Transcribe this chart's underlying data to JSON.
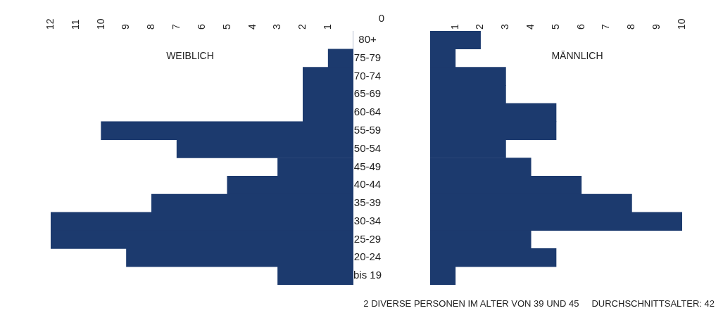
{
  "chart_data": [
    {
      "type": "bar",
      "orientation": "horizontal",
      "title": "WEIBLICH",
      "categories": [
        "80+",
        "75-79",
        "70-74",
        "65-69",
        "60-64",
        "55-59",
        "50-54",
        "45-49",
        "40-44",
        "35-39",
        "30-34",
        "25-29",
        "20-24",
        "bis 19"
      ],
      "series": [
        {
          "color": "#1c3a6e",
          "values": [
            0,
            1,
            2,
            2,
            2,
            10,
            7,
            3,
            5,
            8,
            12,
            12,
            9,
            3
          ]
        }
      ],
      "xlim": [
        12,
        0
      ],
      "xticks": [
        1,
        2,
        3,
        4,
        5,
        6,
        7,
        8,
        9,
        10,
        11,
        12
      ],
      "grid": false,
      "legend": false,
      "annotations": [
        "0"
      ]
    },
    {
      "type": "bar",
      "orientation": "horizontal",
      "title": "MÄNNLICH",
      "categories": [
        null,
        null,
        null,
        null,
        null,
        null,
        null,
        null,
        null,
        null,
        null,
        null,
        null,
        null
      ],
      "series": [
        {
          "color": "#1c3a6e",
          "values": [
            2,
            1,
            3,
            3,
            5,
            5,
            3,
            4,
            6,
            8,
            10,
            4,
            5,
            1
          ]
        }
      ],
      "xlim": [
        0,
        10
      ],
      "xticks": [
        1,
        2,
        3,
        4,
        5,
        6,
        7,
        8,
        9,
        10
      ],
      "grid": false,
      "legend": false,
      "tick_labels": "x",
      "annotations": [
        "2 DIVERSE PERSONEN IM ALTER VON 39 UND 45",
        "DURCHSCHNITTSALTER: 42"
      ]
    }
  ]
}
